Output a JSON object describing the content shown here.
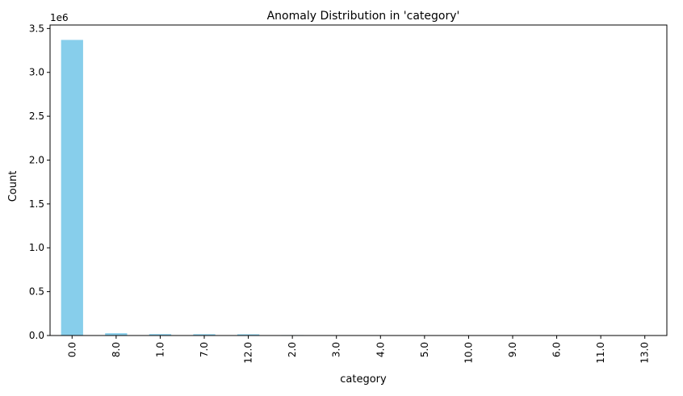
{
  "chart_data": {
    "type": "bar",
    "title": "Anomaly Distribution in 'category'",
    "xlabel": "category",
    "ylabel": "Count",
    "y_multiplier_label": "1e6",
    "categories": [
      "0.0",
      "8.0",
      "1.0",
      "7.0",
      "12.0",
      "2.0",
      "3.0",
      "4.0",
      "5.0",
      "10.0",
      "9.0",
      "6.0",
      "11.0",
      "13.0"
    ],
    "values": [
      3370000,
      26000,
      16000,
      15000,
      14000,
      5000,
      4000,
      3500,
      3000,
      2500,
      2000,
      1500,
      1200,
      1000
    ],
    "ylim": [
      0,
      3540000
    ],
    "yticks": [
      0,
      500000,
      1000000,
      1500000,
      2000000,
      2500000,
      3000000,
      3500000
    ],
    "ytick_labels": [
      "0.0",
      "0.5",
      "1.0",
      "1.5",
      "2.0",
      "2.5",
      "3.0",
      "3.5"
    ],
    "bar_color": "#87ceeb",
    "grid": false,
    "legend": "none"
  }
}
